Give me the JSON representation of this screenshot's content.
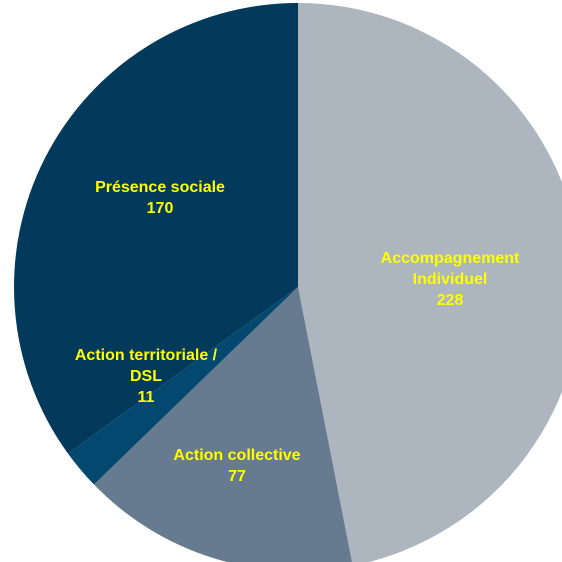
{
  "chart_data": {
    "type": "pie",
    "title": "",
    "start_angle_deg": 0,
    "direction": "clockwise",
    "label_color": "#FFFF00",
    "slices": [
      {
        "id": "accompagnement-individuel",
        "label_lines": [
          "Accompagnement",
          "Individuel"
        ],
        "value_text": "228",
        "value": 228,
        "color": "#ADB5BF"
      },
      {
        "id": "action-collective",
        "label_lines": [
          "Action collective"
        ],
        "value_text": "77",
        "value": 77,
        "color": "#667B90"
      },
      {
        "id": "action-territoriale-dsl",
        "label_lines": [
          "Action territoriale /",
          "DSL"
        ],
        "value_text": "11",
        "value": 11,
        "color": "#03486E"
      },
      {
        "id": "presence-sociale",
        "label_lines": [
          "Présence sociale"
        ],
        "value_text": "170",
        "value": 170,
        "color": "#033A5C"
      }
    ]
  }
}
